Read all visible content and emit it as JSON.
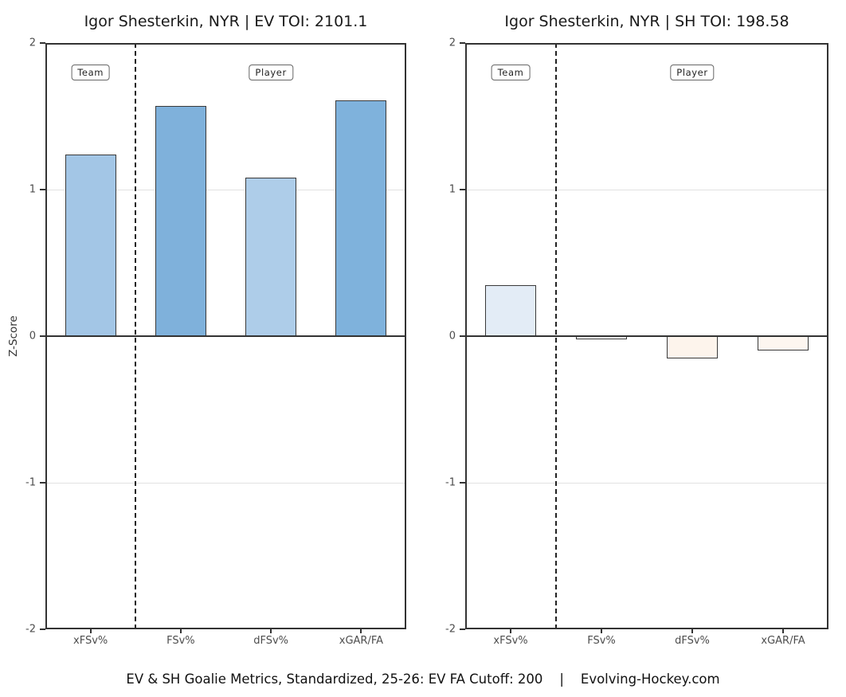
{
  "figure": {
    "caption": "EV & SH Goalie Metrics, Standardized, 25-26: EV FA Cutoff: 200    |    Evolving-Hockey.com",
    "ylabel": "Z-Score"
  },
  "chart_data": [
    {
      "type": "bar",
      "title": "Igor Shesterkin, NYR | EV TOI: 2101.1",
      "categories": [
        "xFSv%",
        "FSv%",
        "dFSv%",
        "xGAR/FA"
      ],
      "values": [
        1.24,
        1.57,
        1.08,
        1.61
      ],
      "bar_colors": [
        "#a3c6e6",
        "#7fb1db",
        "#aecde9",
        "#7fb2dc"
      ],
      "ylabel": "Z-Score",
      "ylim": [
        -2,
        2
      ],
      "yticks": [
        2,
        1,
        0,
        -1,
        -2
      ],
      "gridlines_at": [
        1,
        -1
      ],
      "zero_line": true,
      "divider_after_index": 0,
      "group_labels": [
        "Team",
        "Player"
      ]
    },
    {
      "type": "bar",
      "title": "Igor Shesterkin, NYR | SH TOI: 198.58",
      "categories": [
        "xFSv%",
        "FSv%",
        "dFSv%",
        "xGAR/FA"
      ],
      "values": [
        0.35,
        -0.02,
        -0.15,
        -0.1
      ],
      "bar_colors": [
        "#e3ecf6",
        "#fefefe",
        "#fdf4ec",
        "#fdf6f0"
      ],
      "ylabel": "Z-Score",
      "ylim": [
        -2,
        2
      ],
      "yticks": [
        2,
        1,
        0,
        -1,
        -2
      ],
      "gridlines_at": [
        1,
        -1
      ],
      "zero_line": true,
      "divider_after_index": 0,
      "group_labels": [
        "Team",
        "Player"
      ]
    }
  ]
}
